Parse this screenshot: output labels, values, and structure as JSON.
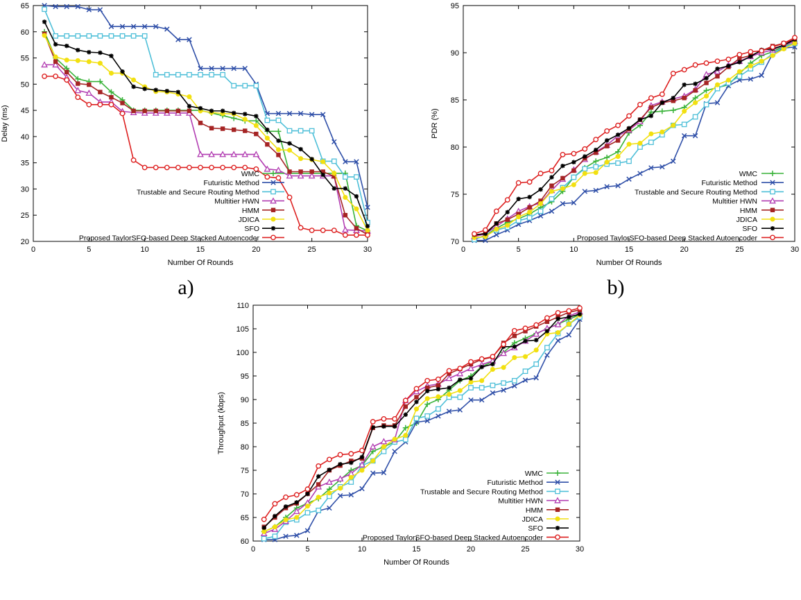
{
  "chart_data": [
    {
      "id": "delay",
      "type": "line",
      "caption": "a)",
      "xlabel": "Number Of Rounds",
      "ylabel": "Delay (ms)",
      "xlim": [
        0,
        30
      ],
      "ylim": [
        20,
        65
      ],
      "xticks": [
        0,
        5,
        10,
        15,
        20,
        25,
        30
      ],
      "yticks": [
        20,
        25,
        30,
        35,
        40,
        45,
        50,
        55,
        60,
        65
      ],
      "legend_position": "bottom-right",
      "x": [
        1,
        2,
        3,
        4,
        5,
        6,
        7,
        8,
        9,
        10,
        11,
        12,
        13,
        14,
        15,
        16,
        17,
        18,
        19,
        20,
        21,
        22,
        23,
        24,
        25,
        26,
        27,
        28,
        29,
        30
      ],
      "series": [
        {
          "name": "WMC",
          "values": [
            60,
            55,
            53,
            51,
            50.5,
            50.5,
            48.5,
            47,
            45,
            45,
            45,
            45,
            45,
            45,
            45,
            44.5,
            44,
            43.5,
            43,
            43,
            41,
            41,
            33,
            33,
            33,
            33,
            33,
            33,
            23,
            22
          ]
        },
        {
          "name": "Futuristic Method",
          "values": [
            65,
            64.8,
            64.8,
            64.8,
            64.2,
            64.2,
            61,
            61,
            61,
            61,
            61,
            60.5,
            58.5,
            58.5,
            53,
            53,
            53,
            53,
            53,
            50,
            44.4,
            44.4,
            44.4,
            44.4,
            44.2,
            44.2,
            39,
            35.2,
            35.2,
            26.5
          ]
        },
        {
          "name": "Trustable and Secure Routing Method",
          "values": [
            64.3,
            59.2,
            59.2,
            59.2,
            59.2,
            59.2,
            59.2,
            59.2,
            59.2,
            59.2,
            51.8,
            51.8,
            51.8,
            51.8,
            51.8,
            51.8,
            51.8,
            49.7,
            49.7,
            49.7,
            43.1,
            43.1,
            41.1,
            41.1,
            41.1,
            35.3,
            35.3,
            32.3,
            32.3,
            23.6
          ]
        },
        {
          "name": "Multitier HWN",
          "values": [
            53.7,
            53.7,
            51.3,
            48.8,
            48.3,
            46.6,
            46.6,
            44.8,
            44.6,
            44.5,
            44.5,
            44.5,
            44.5,
            44.5,
            36.6,
            36.6,
            36.6,
            36.6,
            36.6,
            36.6,
            33.8,
            33.6,
            32.5,
            32.5,
            32.5,
            32.5,
            32.5,
            22.2,
            22.1,
            22
          ]
        },
        {
          "name": "HMM",
          "values": [
            59.6,
            54.3,
            52.3,
            50.1,
            49.9,
            48.5,
            47.5,
            46.4,
            44.9,
            44.9,
            44.9,
            44.9,
            44.9,
            44.9,
            42.6,
            41.6,
            41.5,
            41.3,
            41.1,
            40.5,
            38.5,
            36.5,
            33.3,
            33.3,
            33.3,
            33.3,
            32.4,
            25,
            22.5,
            21.3
          ]
        },
        {
          "name": "JDICA",
          "values": [
            59.3,
            55.2,
            54.6,
            54.5,
            54.3,
            54,
            52.1,
            52.1,
            50.8,
            49.5,
            48.6,
            48.5,
            48.1,
            47.6,
            44.9,
            44.6,
            44.4,
            44.3,
            43.3,
            42.1,
            39.7,
            37.5,
            37.4,
            35.8,
            35.6,
            35.2,
            33,
            28.4,
            26.2,
            22.1
          ]
        },
        {
          "name": "SFO",
          "values": [
            61.9,
            57.6,
            57.3,
            56.5,
            56.1,
            56,
            55.4,
            52.4,
            49.5,
            49.1,
            48.9,
            48.7,
            48.5,
            45.8,
            45.4,
            44.9,
            44.9,
            44.5,
            44.3,
            43.9,
            41.3,
            39.2,
            38.7,
            37.6,
            35.7,
            32.7,
            30.1,
            30.1,
            28.6,
            22.9
          ]
        },
        {
          "name": "Proposed TaylorSFO-based Deep Stacked Autoencoder",
          "values": [
            51.5,
            51.5,
            50.8,
            47.5,
            46.1,
            46.1,
            46.1,
            44.4,
            35.5,
            34.1,
            34.1,
            34.1,
            34.1,
            34.1,
            34.1,
            34.1,
            34.1,
            34.1,
            34.1,
            33.8,
            32.3,
            32.1,
            28.4,
            22.6,
            22.1,
            22.1,
            22.1,
            21.2,
            21.2,
            21.2
          ]
        }
      ]
    },
    {
      "id": "pdr",
      "type": "line",
      "caption": "b)",
      "xlabel": "Number Of Rounds",
      "ylabel": "PDR (%)",
      "xlim": [
        0,
        30
      ],
      "ylim": [
        70,
        95
      ],
      "xticks": [
        0,
        5,
        10,
        15,
        20,
        25,
        30
      ],
      "yticks": [
        70,
        75,
        80,
        85,
        90,
        95
      ],
      "legend_position": "bottom-right",
      "x": [
        1,
        2,
        3,
        4,
        5,
        6,
        7,
        8,
        9,
        10,
        11,
        12,
        13,
        14,
        15,
        16,
        17,
        18,
        19,
        20,
        21,
        22,
        23,
        24,
        25,
        26,
        27,
        28,
        29,
        30
      ],
      "series": [
        {
          "name": "WMC",
          "values": [
            70.3,
            70.6,
            71.4,
            72.0,
            72.4,
            72.9,
            73.6,
            74.2,
            75.3,
            76.8,
            77.8,
            78.5,
            78.9,
            79.5,
            81.5,
            82.3,
            83.7,
            83.8,
            83.9,
            84.2,
            85.2,
            86.0,
            86.3,
            86.6,
            87.8,
            88.9,
            89.7,
            90.1,
            90.7,
            91.0
          ]
        },
        {
          "name": "Futuristic Method",
          "values": [
            70.1,
            70.1,
            70.7,
            71.2,
            71.8,
            72.2,
            72.7,
            73.2,
            74.0,
            74.1,
            75.3,
            75.4,
            75.8,
            75.9,
            76.6,
            77.2,
            77.8,
            77.9,
            78.5,
            81.2,
            81.2,
            84.6,
            84.7,
            86.5,
            87.1,
            87.2,
            87.6,
            89.9,
            90.5,
            90.6
          ]
        },
        {
          "name": "Trustable and Secure Routing Method",
          "values": [
            70.2,
            70.6,
            71.2,
            71.5,
            72.2,
            72.5,
            73.2,
            74.5,
            75.7,
            76.8,
            77.7,
            77.9,
            78.2,
            78.3,
            78.5,
            80.0,
            80.5,
            81.3,
            82.3,
            82.4,
            83.2,
            84.5,
            86.2,
            86.8,
            87.5,
            88.3,
            89.0,
            89.9,
            90.6,
            91.0
          ]
        },
        {
          "name": "Multitier HWN",
          "values": [
            70.5,
            70.8,
            71.6,
            72.4,
            73.2,
            73.7,
            74.1,
            75.4,
            76.6,
            77.6,
            78.7,
            79.5,
            80.2,
            81.2,
            81.8,
            82.7,
            84.4,
            84.8,
            85.1,
            85.4,
            86.1,
            87.7,
            88.0,
            88.7,
            89.1,
            89.6,
            90.0,
            90.3,
            90.8,
            91.2
          ]
        },
        {
          "name": "HMM",
          "values": [
            70.6,
            70.9,
            71.9,
            72.3,
            72.9,
            73.6,
            74.3,
            75.9,
            76.7,
            77.5,
            78.8,
            79.4,
            80.1,
            80.7,
            81.9,
            82.9,
            84.2,
            84.7,
            84.9,
            85.2,
            86.0,
            86.8,
            87.5,
            88.5,
            89.4,
            89.7,
            90.2,
            90.7,
            91.0,
            91.4
          ]
        },
        {
          "name": "JDICA",
          "values": [
            70.4,
            70.5,
            71.3,
            71.7,
            72.6,
            73.1,
            74.0,
            75.3,
            75.6,
            76.0,
            77.2,
            77.3,
            78.4,
            79.0,
            80.3,
            80.4,
            81.4,
            81.6,
            82.3,
            83.8,
            84.7,
            85.4,
            86.6,
            87.1,
            88.0,
            88.6,
            89.1,
            89.7,
            90.4,
            91.0
          ]
        },
        {
          "name": "SFO",
          "values": [
            70.7,
            70.8,
            71.9,
            73.1,
            74.5,
            74.7,
            75.5,
            76.8,
            78.0,
            78.4,
            79.0,
            79.7,
            80.7,
            81.3,
            82.0,
            82.9,
            83.3,
            84.7,
            85.2,
            86.6,
            86.7,
            87.3,
            88.3,
            88.6,
            89.0,
            89.6,
            90.3,
            90.4,
            90.8,
            91.4
          ]
        },
        {
          "name": "Proposed TaylorSFO-based Deep Stacked Autoencoder",
          "values": [
            70.8,
            71.2,
            73.2,
            74.4,
            76.2,
            76.3,
            77.2,
            77.5,
            79.2,
            79.3,
            79.8,
            80.8,
            81.7,
            82.3,
            83.3,
            84.5,
            85.2,
            85.6,
            87.8,
            88.2,
            88.7,
            88.9,
            89.1,
            89.3,
            89.8,
            90.1,
            90.2,
            90.6,
            91.0,
            91.6
          ]
        }
      ]
    },
    {
      "id": "throughput",
      "type": "line",
      "caption": "",
      "xlabel": "Number Of Rounds",
      "ylabel": "Throughput (kbps)",
      "xlim": [
        0,
        30
      ],
      "ylim": [
        60,
        110
      ],
      "xticks": [
        0,
        5,
        10,
        15,
        20,
        25,
        30
      ],
      "yticks": [
        60,
        65,
        70,
        75,
        80,
        85,
        90,
        95,
        100,
        105,
        110
      ],
      "legend_position": "bottom-right",
      "x": [
        1,
        2,
        3,
        4,
        5,
        6,
        7,
        8,
        9,
        10,
        11,
        12,
        13,
        14,
        15,
        16,
        17,
        18,
        19,
        20,
        21,
        22,
        23,
        24,
        25,
        26,
        27,
        28,
        29,
        30
      ],
      "series": [
        {
          "name": "WMC",
          "values": [
            62,
            63,
            65,
            67,
            68,
            69,
            71,
            73,
            75,
            76,
            79,
            80,
            81,
            84,
            85,
            89,
            90,
            92,
            94,
            95,
            97,
            98,
            100,
            102,
            103,
            104,
            105,
            106,
            107,
            108
          ]
        },
        {
          "name": "Futuristic Method",
          "values": [
            60.3,
            60.3,
            61,
            61.2,
            62.2,
            66.4,
            67,
            69.6,
            69.8,
            71.1,
            74.4,
            74.5,
            79,
            81,
            85.2,
            85.5,
            86.5,
            87.5,
            87.8,
            89.9,
            89.9,
            91.4,
            92,
            92.9,
            94.1,
            94.6,
            99.4,
            102.5,
            103.7,
            107
          ]
        },
        {
          "name": "Trustable and Secure Routing Method",
          "values": [
            60.5,
            61,
            64,
            64.5,
            66,
            66.5,
            69.5,
            71.5,
            72.5,
            76,
            77,
            79,
            81,
            81.5,
            86,
            86.5,
            88,
            90.5,
            90.5,
            92.5,
            92.5,
            93,
            93.5,
            94,
            96,
            97.5,
            101,
            104,
            106,
            107.5
          ]
        },
        {
          "name": "Multitier HWN",
          "values": [
            61.6,
            62.5,
            64.2,
            66.3,
            68.1,
            71.5,
            72.5,
            73.2,
            74.3,
            76.2,
            80,
            81.1,
            81.5,
            89.8,
            91.7,
            92.9,
            93.3,
            94.5,
            95.5,
            96.6,
            97.4,
            98.2,
            99.8,
            101,
            102.4,
            103.9,
            105.1,
            105.9,
            107.7,
            108.6
          ]
        },
        {
          "name": "HMM",
          "values": [
            63,
            65,
            67,
            68,
            70,
            72,
            75,
            76,
            77,
            77.5,
            84,
            84.5,
            84.5,
            88.5,
            90.5,
            92.5,
            93,
            95.5,
            96.5,
            97.5,
            98.5,
            99,
            102,
            103.5,
            104.5,
            105.5,
            106.5,
            107.5,
            108.5,
            109
          ]
        },
        {
          "name": "JDICA",
          "values": [
            62,
            63,
            64.5,
            65,
            67.4,
            69.3,
            70.2,
            71.2,
            73.5,
            75,
            77,
            80,
            81.6,
            82.4,
            88,
            90.2,
            90.6,
            91.1,
            91.9,
            93.7,
            94,
            96.4,
            96.8,
            98.9,
            99.1,
            100.5,
            103.9,
            104.2,
            106,
            107.9
          ]
        },
        {
          "name": "SFO",
          "values": [
            62.8,
            65.3,
            67.3,
            68.2,
            70.0,
            73.7,
            75.1,
            76.3,
            76.6,
            77.8,
            84.1,
            84.3,
            84.3,
            86.8,
            89.5,
            91.8,
            92.2,
            92.5,
            94.2,
            94.5,
            96.9,
            97.5,
            101.2,
            101.2,
            102.4,
            102.6,
            104.5,
            107.1,
            107.5,
            108.1
          ]
        },
        {
          "name": "Proposed TaylorSFO-based Deep Stacked Autoencoder",
          "values": [
            64.6,
            67.9,
            69.3,
            69.8,
            71.0,
            75.9,
            77.3,
            78.3,
            78.5,
            79.2,
            85.3,
            85.9,
            85.9,
            89.8,
            92.3,
            94.0,
            94.3,
            96.1,
            96.6,
            98.0,
            98.6,
            99.1,
            101.7,
            104.6,
            105.1,
            105.8,
            107.3,
            108.4,
            108.8,
            109.4
          ]
        }
      ]
    }
  ],
  "styles": [
    {
      "name": "WMC",
      "color": "#38b238",
      "marker": "plus"
    },
    {
      "name": "Futuristic Method",
      "color": "#2f4fa8",
      "marker": "x"
    },
    {
      "name": "Trustable and Secure Routing Method",
      "color": "#4ebfd8",
      "marker": "square-open"
    },
    {
      "name": "Multitier HWN",
      "color": "#b23db2",
      "marker": "triangle-open"
    },
    {
      "name": "HMM",
      "color": "#a52424",
      "marker": "square-filled"
    },
    {
      "name": "JDICA",
      "color": "#f2e010",
      "marker": "circle-filled"
    },
    {
      "name": "SFO",
      "color": "#000000",
      "marker": "star"
    },
    {
      "name": "Proposed TaylorSFO-based Deep Stacked Autoencoder",
      "color": "#dd1f1f",
      "marker": "circle-open"
    }
  ]
}
